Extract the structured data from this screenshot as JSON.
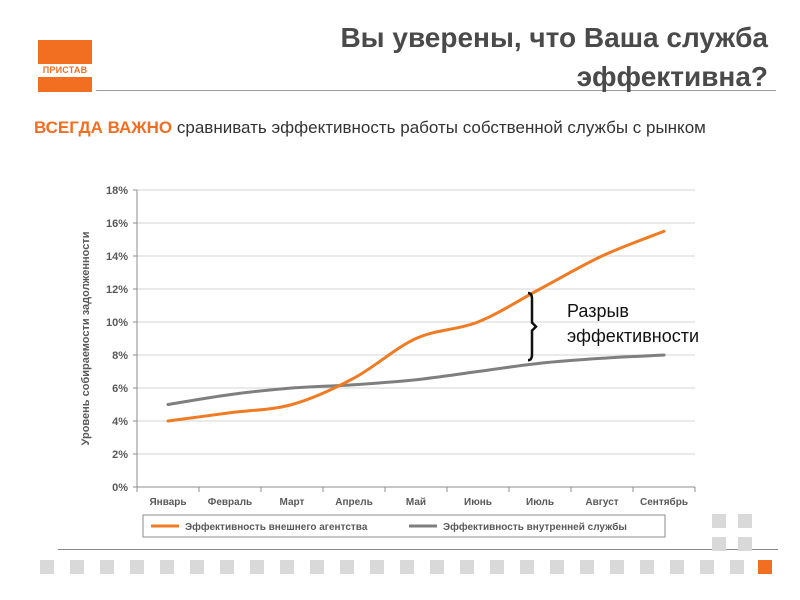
{
  "header": {
    "title": "Вы уверены, что Ваша служба эффективна?",
    "logo_text": "ПРИСТАВ"
  },
  "subtitle": {
    "emphasis": "ВСЕГДА ВАЖНО",
    "text": " сравнивать эффективность работы собственной службы с рынком"
  },
  "annotation": {
    "line1": "Разрыв",
    "line2": "эффективности"
  },
  "chart_data": {
    "type": "line",
    "categories": [
      "Январь",
      "Февраль",
      "Март",
      "Апрель",
      "Май",
      "Июнь",
      "Июль",
      "Август",
      "Сентябрь"
    ],
    "ylabel": "Уровень собираемости задолженности",
    "xlabel": "",
    "ylim": [
      0,
      0.18
    ],
    "yticks": [
      0,
      0.02,
      0.04,
      0.06,
      0.08,
      0.1,
      0.12,
      0.14,
      0.16,
      0.18
    ],
    "ytick_labels": [
      "0%",
      "2%",
      "4%",
      "6%",
      "8%",
      "10%",
      "12%",
      "14%",
      "16%",
      "18%"
    ],
    "grid": "horizontal",
    "legend_position": "bottom",
    "series": [
      {
        "name": "Эффективность внешнего агентства",
        "color": "#f07b23",
        "values": [
          0.04,
          0.045,
          0.05,
          0.066,
          0.09,
          0.1,
          0.12,
          0.14,
          0.155
        ]
      },
      {
        "name": "Эффективность внутренней службы",
        "color": "#7f7f7f",
        "values": [
          0.05,
          0.056,
          0.06,
          0.062,
          0.065,
          0.07,
          0.075,
          0.078,
          0.08
        ]
      }
    ]
  },
  "colors": {
    "accent": "#f26f21",
    "title": "#4a4a4a",
    "grid": "#d4d4d4"
  }
}
